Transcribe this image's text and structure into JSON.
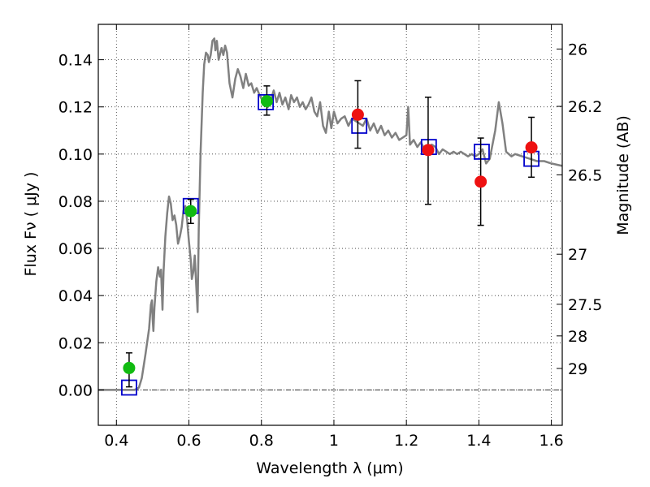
{
  "chart_data": {
    "type": "scatter",
    "xlabel": "Wavelength  λ (μm)",
    "ylabel": "Flux  Fν  ( μJy )",
    "y2label": "Magnitude (AB)",
    "xlim": [
      0.35,
      1.63
    ],
    "ylim": [
      -0.015,
      0.155
    ],
    "xticks": [
      {
        "v": 0.4,
        "label": "0.4"
      },
      {
        "v": 0.6,
        "label": "0.6"
      },
      {
        "v": 0.8,
        "label": "0.8"
      },
      {
        "v": 1.0,
        "label": "1"
      },
      {
        "v": 1.2,
        "label": "1.2"
      },
      {
        "v": 1.4,
        "label": "1.4"
      },
      {
        "v": 1.6,
        "label": "1.6"
      }
    ],
    "yticks": [
      {
        "v": 0.0,
        "label": "0.00"
      },
      {
        "v": 0.02,
        "label": "0.02"
      },
      {
        "v": 0.04,
        "label": "0.04"
      },
      {
        "v": 0.06,
        "label": "0.06"
      },
      {
        "v": 0.08,
        "label": "0.08"
      },
      {
        "v": 0.1,
        "label": "0.10"
      },
      {
        "v": 0.12,
        "label": "0.12"
      },
      {
        "v": 0.14,
        "label": "0.14"
      }
    ],
    "y2ticks": [
      {
        "mag": 26,
        "label": "26"
      },
      {
        "mag": 26.2,
        "label": "26.2"
      },
      {
        "mag": 26.5,
        "label": "26.5"
      },
      {
        "mag": 27,
        "label": "27"
      },
      {
        "mag": 27.5,
        "label": "27.5"
      },
      {
        "mag": 28,
        "label": "28"
      },
      {
        "mag": 29,
        "label": "29"
      }
    ],
    "grid": true,
    "colors": {
      "model": "#808080",
      "observed_green": "#11bb11",
      "observed_red": "#ee1111",
      "model_flux_box": "#0000cc",
      "error_bar": "#000000",
      "zero_line": "#333333"
    },
    "series": [
      {
        "name": "model spectrum",
        "kind": "line",
        "points": [
          [
            0.35,
            0.0
          ],
          [
            0.45,
            0.0
          ],
          [
            0.462,
            0.001
          ],
          [
            0.47,
            0.005
          ],
          [
            0.48,
            0.015
          ],
          [
            0.49,
            0.026
          ],
          [
            0.495,
            0.036
          ],
          [
            0.498,
            0.038
          ],
          [
            0.5,
            0.03
          ],
          [
            0.502,
            0.025
          ],
          [
            0.505,
            0.035
          ],
          [
            0.51,
            0.046
          ],
          [
            0.515,
            0.052
          ],
          [
            0.52,
            0.048
          ],
          [
            0.523,
            0.051
          ],
          [
            0.527,
            0.034
          ],
          [
            0.53,
            0.05
          ],
          [
            0.535,
            0.065
          ],
          [
            0.54,
            0.075
          ],
          [
            0.545,
            0.082
          ],
          [
            0.55,
            0.079
          ],
          [
            0.555,
            0.072
          ],
          [
            0.56,
            0.074
          ],
          [
            0.565,
            0.07
          ],
          [
            0.57,
            0.062
          ],
          [
            0.575,
            0.065
          ],
          [
            0.58,
            0.069
          ],
          [
            0.585,
            0.076
          ],
          [
            0.59,
            0.078
          ],
          [
            0.595,
            0.072
          ],
          [
            0.6,
            0.063
          ],
          [
            0.605,
            0.055
          ],
          [
            0.608,
            0.047
          ],
          [
            0.612,
            0.05
          ],
          [
            0.616,
            0.057
          ],
          [
            0.62,
            0.045
          ],
          [
            0.624,
            0.033
          ],
          [
            0.627,
            0.068
          ],
          [
            0.632,
            0.1
          ],
          [
            0.638,
            0.126
          ],
          [
            0.642,
            0.138
          ],
          [
            0.647,
            0.143
          ],
          [
            0.652,
            0.142
          ],
          [
            0.655,
            0.139
          ],
          [
            0.66,
            0.142
          ],
          [
            0.665,
            0.148
          ],
          [
            0.67,
            0.149
          ],
          [
            0.673,
            0.144
          ],
          [
            0.677,
            0.148
          ],
          [
            0.682,
            0.14
          ],
          [
            0.69,
            0.145
          ],
          [
            0.695,
            0.142
          ],
          [
            0.7,
            0.146
          ],
          [
            0.705,
            0.143
          ],
          [
            0.712,
            0.13
          ],
          [
            0.72,
            0.124
          ],
          [
            0.728,
            0.132
          ],
          [
            0.735,
            0.136
          ],
          [
            0.742,
            0.133
          ],
          [
            0.75,
            0.128
          ],
          [
            0.757,
            0.134
          ],
          [
            0.765,
            0.129
          ],
          [
            0.772,
            0.13
          ],
          [
            0.78,
            0.126
          ],
          [
            0.787,
            0.128
          ],
          [
            0.795,
            0.125
          ],
          [
            0.802,
            0.123
          ],
          [
            0.81,
            0.125
          ],
          [
            0.818,
            0.12
          ],
          [
            0.826,
            0.123
          ],
          [
            0.834,
            0.127
          ],
          [
            0.842,
            0.122
          ],
          [
            0.85,
            0.126
          ],
          [
            0.858,
            0.121
          ],
          [
            0.866,
            0.124
          ],
          [
            0.875,
            0.119
          ],
          [
            0.882,
            0.125
          ],
          [
            0.89,
            0.122
          ],
          [
            0.898,
            0.124
          ],
          [
            0.906,
            0.12
          ],
          [
            0.914,
            0.122
          ],
          [
            0.922,
            0.119
          ],
          [
            0.93,
            0.121
          ],
          [
            0.938,
            0.124
          ],
          [
            0.946,
            0.118
          ],
          [
            0.954,
            0.116
          ],
          [
            0.962,
            0.122
          ],
          [
            0.97,
            0.112
          ],
          [
            0.978,
            0.109
          ],
          [
            0.986,
            0.118
          ],
          [
            0.993,
            0.111
          ],
          [
            1.0,
            0.118
          ],
          [
            1.01,
            0.113
          ],
          [
            1.02,
            0.115
          ],
          [
            1.03,
            0.116
          ],
          [
            1.04,
            0.112
          ],
          [
            1.05,
            0.115
          ],
          [
            1.06,
            0.114
          ],
          [
            1.07,
            0.113
          ],
          [
            1.08,
            0.112
          ],
          [
            1.09,
            0.115
          ],
          [
            1.1,
            0.11
          ],
          [
            1.11,
            0.113
          ],
          [
            1.12,
            0.109
          ],
          [
            1.13,
            0.112
          ],
          [
            1.14,
            0.108
          ],
          [
            1.15,
            0.11
          ],
          [
            1.16,
            0.107
          ],
          [
            1.17,
            0.109
          ],
          [
            1.18,
            0.106
          ],
          [
            1.19,
            0.107
          ],
          [
            1.2,
            0.108
          ],
          [
            1.205,
            0.12
          ],
          [
            1.21,
            0.104
          ],
          [
            1.22,
            0.106
          ],
          [
            1.23,
            0.103
          ],
          [
            1.24,
            0.105
          ],
          [
            1.25,
            0.102
          ],
          [
            1.26,
            0.103
          ],
          [
            1.27,
            0.104
          ],
          [
            1.28,
            0.103
          ],
          [
            1.29,
            0.1
          ],
          [
            1.3,
            0.102
          ],
          [
            1.31,
            0.101
          ],
          [
            1.32,
            0.1
          ],
          [
            1.33,
            0.101
          ],
          [
            1.34,
            0.1
          ],
          [
            1.35,
            0.101
          ],
          [
            1.36,
            0.1
          ],
          [
            1.37,
            0.099
          ],
          [
            1.38,
            0.1
          ],
          [
            1.39,
            0.099
          ],
          [
            1.4,
            0.1
          ],
          [
            1.41,
            0.102
          ],
          [
            1.42,
            0.096
          ],
          [
            1.43,
            0.098
          ],
          [
            1.445,
            0.11
          ],
          [
            1.455,
            0.122
          ],
          [
            1.465,
            0.113
          ],
          [
            1.475,
            0.101
          ],
          [
            1.49,
            0.099
          ],
          [
            1.5,
            0.1
          ],
          [
            1.52,
            0.099
          ],
          [
            1.54,
            0.098
          ],
          [
            1.56,
            0.097
          ],
          [
            1.58,
            0.097
          ],
          [
            1.6,
            0.096
          ],
          [
            1.63,
            0.095
          ]
        ]
      },
      {
        "name": "model flux (boxes)",
        "kind": "square",
        "points": [
          [
            0.435,
            0.001
          ],
          [
            0.605,
            0.078
          ],
          [
            0.812,
            0.122
          ],
          [
            1.07,
            0.112
          ],
          [
            1.262,
            0.103
          ],
          [
            1.408,
            0.101
          ],
          [
            1.545,
            0.098
          ]
        ]
      },
      {
        "name": "observed (green)",
        "kind": "circle",
        "points": [
          {
            "x": 0.435,
            "y": 0.0093,
            "ylo": 0.0013,
            "yhi": 0.0157
          },
          {
            "x": 0.605,
            "y": 0.0758,
            "ylo": 0.0706,
            "yhi": 0.0808
          },
          {
            "x": 0.815,
            "y": 0.1224,
            "ylo": 0.1165,
            "yhi": 0.1289
          }
        ]
      },
      {
        "name": "observed (red)",
        "kind": "circle",
        "points": [
          {
            "x": 1.066,
            "y": 0.1167,
            "ylo": 0.1025,
            "yhi": 0.1311
          },
          {
            "x": 1.26,
            "y": 0.1017,
            "ylo": 0.0787,
            "yhi": 0.1241
          },
          {
            "x": 1.405,
            "y": 0.0883,
            "ylo": 0.0698,
            "yhi": 0.1068
          },
          {
            "x": 1.545,
            "y": 0.1028,
            "ylo": 0.0902,
            "yhi": 0.1156
          }
        ]
      }
    ]
  }
}
